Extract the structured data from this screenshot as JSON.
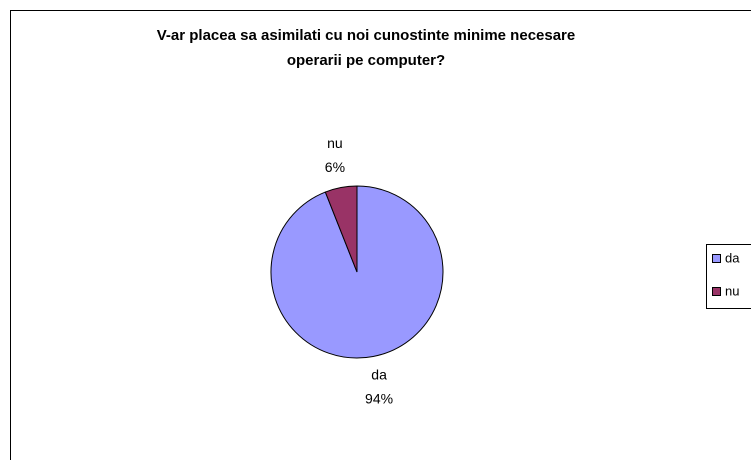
{
  "chart_data": {
    "type": "pie",
    "title": [
      "V-ar placea sa asimilati cu noi cunostinte minime necesare",
      "operarii pe computer?"
    ],
    "categories": [
      "da",
      "nu"
    ],
    "values": [
      94,
      6
    ],
    "value_labels": [
      "94%",
      "6%"
    ],
    "colors": [
      "#9999ff",
      "#993366"
    ],
    "legend": "right"
  }
}
